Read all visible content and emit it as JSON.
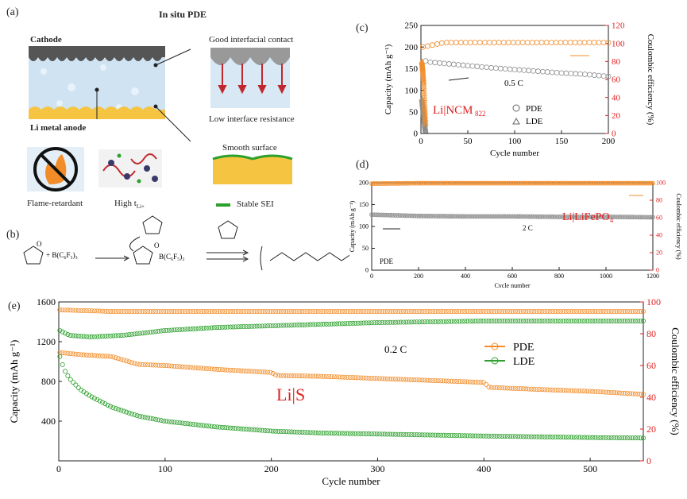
{
  "panel_a": {
    "label": "(a)",
    "title": "In situ PDE",
    "cathode_label": "Cathode",
    "anode_label": "Li metal anode",
    "contact_label": "Good interfacial contact",
    "resistance_label": "Low interface resistance",
    "smooth_label": "Smooth surface",
    "sei_label": "Stable SEI",
    "flame_label": "Flame-retardant",
    "hight_label": "High t",
    "hight_sub": "Li+"
  },
  "panel_b": {
    "label": "(b)",
    "catalyst_label": "+ B(C₆F₅)₃",
    "product_sub": "n"
  },
  "colors": {
    "capacity_gray": "#8c8c8c",
    "efficiency_orange": "#f28c28",
    "pde_orange": "#f28c28",
    "lde_green": "#2ca02c",
    "red_axis": "#e02020",
    "anode_yellow": "#f5c542",
    "electrolyte_blue": "#cfe3f3",
    "cathode_gray": "#555555"
  },
  "chart_data": [
    {
      "id": "c",
      "panel_label": "(c)",
      "type": "scatter",
      "xlabel": "Cycle number",
      "ylabel": "Capacity (mAh g⁻¹)",
      "y2label": "Coulombic efficiency (%)",
      "xlim": [
        0,
        200
      ],
      "ylim": [
        0,
        250
      ],
      "y2lim": [
        0,
        120
      ],
      "xticks": [
        0,
        50,
        100,
        150,
        200
      ],
      "yticks": [
        0,
        50,
        100,
        150,
        200,
        250
      ],
      "y2ticks": [
        0,
        20,
        40,
        60,
        80,
        100,
        120
      ],
      "annotation": "Li|NCM",
      "annotation_sub": "822",
      "rate_label": "0.5 C",
      "legend": [
        "PDE",
        "LDE"
      ],
      "legend_position": "bottom-right",
      "series": [
        {
          "name": "PDE",
          "axis": "left",
          "x": [
            5,
            10,
            25,
            50,
            75,
            100,
            125,
            150,
            175,
            200
          ],
          "values": [
            168,
            165,
            162,
            157,
            152,
            148,
            144,
            140,
            137,
            132
          ]
        },
        {
          "name": "PDE",
          "axis": "right",
          "x": [
            2,
            25,
            50,
            100,
            150,
            200
          ],
          "values": [
            96,
            101,
            101,
            101,
            101,
            101
          ]
        },
        {
          "name": "LDE",
          "axis": "left",
          "x": [
            1,
            2,
            3,
            4,
            5
          ],
          "values": [
            80,
            60,
            40,
            20,
            5
          ]
        },
        {
          "name": "LDE",
          "axis": "right",
          "x": [
            1,
            2,
            3,
            4,
            5
          ],
          "values": [
            80,
            70,
            55,
            30,
            10
          ]
        }
      ]
    },
    {
      "id": "d",
      "panel_label": "(d)",
      "type": "scatter",
      "xlabel": "Cycle number",
      "ylabel": "Capacity (mAh g⁻¹)",
      "y2label": "Coulombic efficiency (%)",
      "xlim": [
        0,
        1200
      ],
      "ylim": [
        0,
        200
      ],
      "y2lim": [
        0,
        100
      ],
      "xticks": [
        0,
        200,
        400,
        600,
        800,
        1000,
        1200
      ],
      "yticks": [
        0,
        50,
        100,
        150,
        200
      ],
      "y2ticks": [
        0,
        20,
        40,
        60,
        80,
        100
      ],
      "annotation": "Li|LiFePO₄",
      "rate_label": "2 C",
      "legend": [
        "PDE"
      ],
      "series": [
        {
          "name": "PDE",
          "axis": "left",
          "x": [
            0,
            200,
            400,
            600,
            800,
            1000,
            1200
          ],
          "values": [
            127,
            124,
            123,
            123,
            122,
            122,
            121
          ]
        },
        {
          "name": "PDE",
          "axis": "right",
          "x": [
            0,
            200,
            400,
            600,
            800,
            1000,
            1200
          ],
          "values": [
            99,
            99.5,
            99.5,
            99.5,
            99.5,
            99.5,
            99.5
          ]
        }
      ]
    },
    {
      "id": "e",
      "panel_label": "(e)",
      "type": "scatter",
      "xlabel": "Cycle number",
      "ylabel": "Capacity (mAh g⁻¹)",
      "y2label": "Coulombic efficiency (%)",
      "xlim": [
        0,
        550
      ],
      "ylim": [
        0,
        1600
      ],
      "y2lim": [
        0,
        100
      ],
      "xticks": [
        0,
        100,
        200,
        300,
        400,
        500
      ],
      "yticks": [
        400,
        800,
        1200,
        1600
      ],
      "y2ticks": [
        0,
        20,
        40,
        60,
        80,
        100
      ],
      "annotation": "Li|S",
      "rate_label": "0.2 C",
      "legend": [
        "PDE",
        "LDE"
      ],
      "legend_position": "center-right",
      "series": [
        {
          "name": "PDE",
          "axis": "left",
          "x": [
            1,
            20,
            50,
            75,
            100,
            150,
            200,
            205,
            250,
            300,
            350,
            400,
            405,
            450,
            500,
            550
          ],
          "values": [
            1090,
            1070,
            1050,
            970,
            960,
            920,
            890,
            860,
            850,
            830,
            810,
            790,
            740,
            720,
            700,
            670
          ]
        },
        {
          "name": "LDE",
          "axis": "left",
          "x": [
            1,
            5,
            10,
            20,
            30,
            50,
            75,
            100,
            150,
            200,
            250,
            300,
            400,
            500,
            550
          ],
          "values": [
            1050,
            920,
            830,
            720,
            650,
            540,
            450,
            400,
            340,
            300,
            280,
            270,
            250,
            235,
            230
          ]
        },
        {
          "name": "PDE",
          "axis": "right",
          "x": [
            1,
            50,
            100,
            200,
            300,
            400,
            500,
            550
          ],
          "values": [
            95,
            94,
            94,
            94,
            94,
            94,
            94,
            94
          ]
        },
        {
          "name": "LDE",
          "axis": "right",
          "x": [
            1,
            10,
            30,
            60,
            100,
            150,
            200,
            300,
            400,
            500,
            550
          ],
          "values": [
            82,
            79,
            78,
            79,
            82,
            84,
            85,
            87,
            88,
            88,
            88
          ]
        }
      ]
    }
  ]
}
